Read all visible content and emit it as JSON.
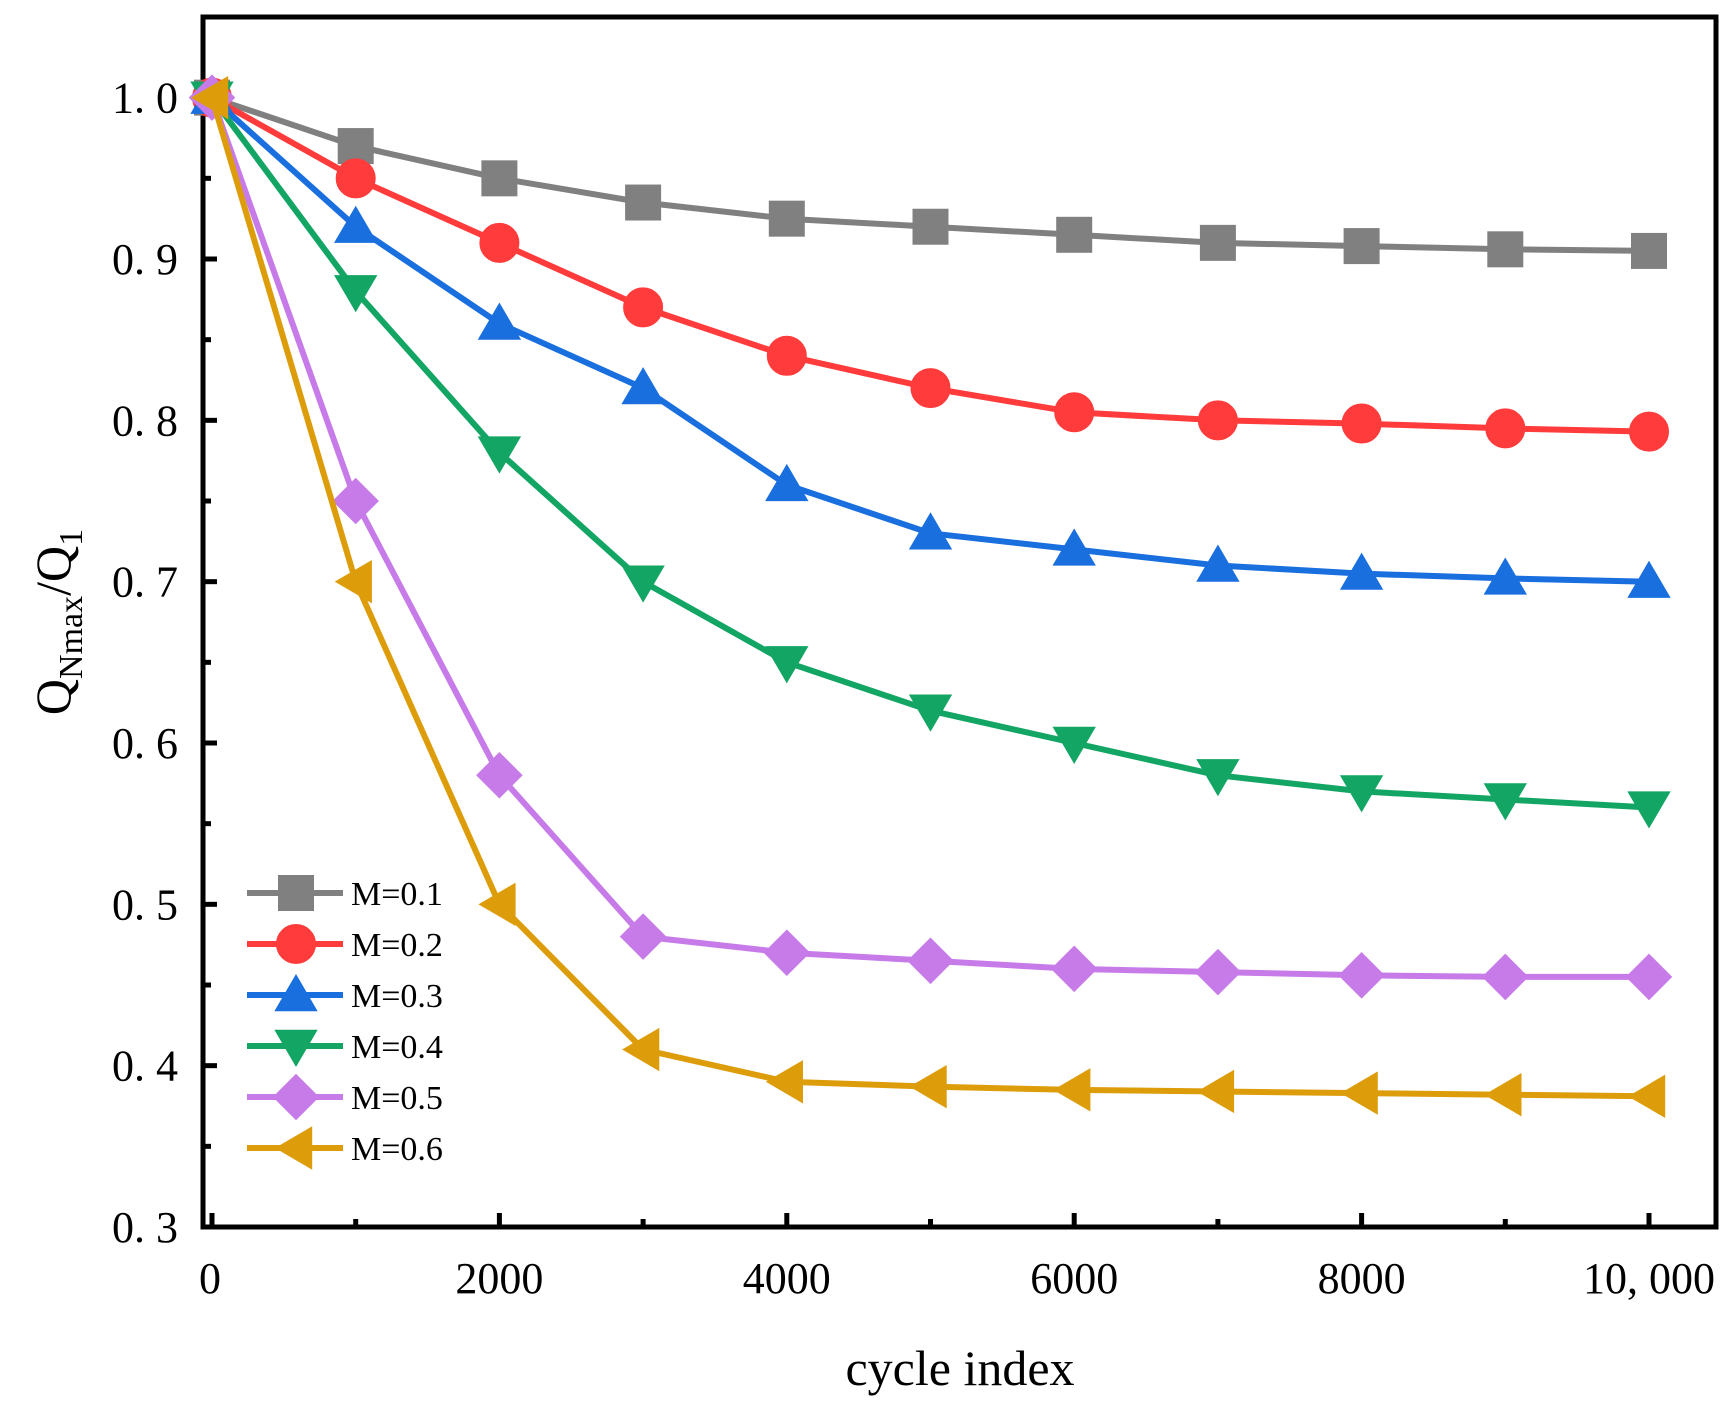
{
  "chart_data": {
    "type": "line",
    "xlabel": "cycle index",
    "ylabel_main": "Q",
    "ylabel_sub1": "Nmax",
    "ylabel_mid": "/Q",
    "ylabel_sub2": "1",
    "xlim": [
      0,
      10400
    ],
    "ylim": [
      0.3,
      1.05
    ],
    "x_ticks": [
      0,
      2000,
      4000,
      6000,
      8000,
      10000
    ],
    "x_tick_labels": [
      "0",
      "2000",
      "4000",
      "6000",
      "8000",
      "10, 000"
    ],
    "y_ticks": [
      0.3,
      0.4,
      0.5,
      0.6,
      0.7,
      0.8,
      0.9,
      1.0
    ],
    "y_tick_labels": [
      "0. 3",
      "0. 4",
      "0. 5",
      "0. 6",
      "0. 7",
      "0. 8",
      "0. 9",
      "1. 0"
    ],
    "legend_position": "bottom-left",
    "x": [
      0,
      1000,
      2000,
      3000,
      4000,
      5000,
      6000,
      7000,
      8000,
      9000,
      10000
    ],
    "series": [
      {
        "name": "M=0.1",
        "color": "#808080",
        "marker": "square",
        "values": [
          1.0,
          0.97,
          0.95,
          0.935,
          0.925,
          0.92,
          0.915,
          0.91,
          0.908,
          0.906,
          0.905
        ]
      },
      {
        "name": "M=0.2",
        "color": "#ff3b3b",
        "marker": "circle",
        "values": [
          1.0,
          0.95,
          0.91,
          0.87,
          0.84,
          0.82,
          0.805,
          0.8,
          0.798,
          0.795,
          0.793
        ]
      },
      {
        "name": "M=0.3",
        "color": "#1a6fdf",
        "marker": "triangle-up",
        "values": [
          1.0,
          0.92,
          0.86,
          0.82,
          0.76,
          0.73,
          0.72,
          0.71,
          0.705,
          0.702,
          0.7
        ]
      },
      {
        "name": "M=0.4",
        "color": "#13a564",
        "marker": "triangle-down",
        "values": [
          1.0,
          0.88,
          0.78,
          0.7,
          0.65,
          0.62,
          0.6,
          0.58,
          0.57,
          0.565,
          0.56
        ]
      },
      {
        "name": "M=0.5",
        "color": "#c77be8",
        "marker": "diamond",
        "values": [
          1.0,
          0.75,
          0.58,
          0.48,
          0.47,
          0.465,
          0.46,
          0.458,
          0.456,
          0.455,
          0.455
        ]
      },
      {
        "name": "M=0.6",
        "color": "#dd9d0b",
        "marker": "triangle-left",
        "values": [
          1.0,
          0.7,
          0.5,
          0.41,
          0.39,
          0.387,
          0.385,
          0.384,
          0.383,
          0.382,
          0.381
        ]
      }
    ]
  }
}
